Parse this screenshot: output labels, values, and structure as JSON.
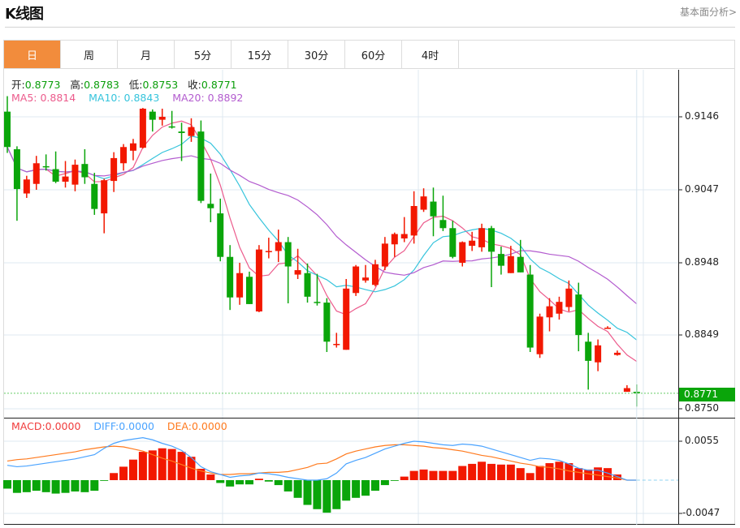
{
  "header": {
    "title": "K线图",
    "link": "基本面分析>"
  },
  "tabs": [
    {
      "label": "日",
      "active": true
    },
    {
      "label": "周"
    },
    {
      "label": "月"
    },
    {
      "label": "5分"
    },
    {
      "label": "15分"
    },
    {
      "label": "30分"
    },
    {
      "label": "60分"
    },
    {
      "label": "4时"
    }
  ],
  "ohlc_legend": {
    "open_label": "开:",
    "open": "0.8773",
    "high_label": "高:",
    "high": "0.8783",
    "low_label": "低:",
    "low": "0.8753",
    "close_label": "收:",
    "close": "0.8771"
  },
  "ma_legend": {
    "ma5": "MA5: 0.8814",
    "ma10": "MA10: 0.8843",
    "ma20": "MA20: 0.8892"
  },
  "macd_legend": {
    "macd": "MACD:0.0000",
    "diff": "DIFF:0.0000",
    "dea": "DEA:0.0000"
  },
  "price_axis": [
    "0.9146",
    "0.9047",
    "0.8948",
    "0.8849",
    "0.8750"
  ],
  "current_price": "0.8771",
  "macd_axis": [
    "0.0055",
    "-0.0047"
  ],
  "colors": {
    "up": "#f21800",
    "down": "#0aa50a",
    "ma5": "#ec5b8c",
    "ma10": "#36c4dc",
    "ma20": "#b35ccf",
    "diff": "#4aa3ff",
    "dea": "#ff7a1e",
    "active_tab": "#f28c3c"
  },
  "chart_data": {
    "type": "candlestick",
    "price_range": [
      0.875,
      0.9146
    ],
    "ohlc": [
      [
        0.9153,
        0.9174,
        0.9097,
        0.9105
      ],
      [
        0.9102,
        0.9106,
        0.9005,
        0.9048
      ],
      [
        0.9042,
        0.9066,
        0.9036,
        0.9061
      ],
      [
        0.9055,
        0.9093,
        0.9047,
        0.9083
      ],
      [
        0.9079,
        0.9095,
        0.9073,
        0.9078
      ],
      [
        0.9075,
        0.9099,
        0.9056,
        0.9058
      ],
      [
        0.9058,
        0.9086,
        0.905,
        0.9065
      ],
      [
        0.9054,
        0.9088,
        0.9045,
        0.9081
      ],
      [
        0.9082,
        0.9102,
        0.9055,
        0.9064
      ],
      [
        0.9055,
        0.907,
        0.9013,
        0.9021
      ],
      [
        0.9015,
        0.9062,
        0.8988,
        0.906
      ],
      [
        0.9059,
        0.9098,
        0.9044,
        0.909
      ],
      [
        0.9083,
        0.9109,
        0.9073,
        0.9105
      ],
      [
        0.91,
        0.9116,
        0.9087,
        0.911
      ],
      [
        0.9104,
        0.9158,
        0.9103,
        0.9157
      ],
      [
        0.9153,
        0.9156,
        0.9126,
        0.9142
      ],
      [
        0.9142,
        0.9157,
        0.9134,
        0.9146
      ],
      [
        0.9133,
        0.9154,
        0.913,
        0.9132
      ],
      [
        0.9126,
        0.9138,
        0.9086,
        0.9124
      ],
      [
        0.912,
        0.9144,
        0.9112,
        0.9132
      ],
      [
        0.9126,
        0.9141,
        0.9029,
        0.9032
      ],
      [
        0.9028,
        0.9069,
        0.9003,
        0.9022
      ],
      [
        0.9015,
        0.9035,
        0.895,
        0.8956
      ],
      [
        0.8956,
        0.8972,
        0.8884,
        0.8901
      ],
      [
        0.8901,
        0.8948,
        0.8891,
        0.8934
      ],
      [
        0.8929,
        0.8936,
        0.8892,
        0.8892
      ],
      [
        0.8882,
        0.8972,
        0.8881,
        0.8966
      ],
      [
        0.8963,
        0.8982,
        0.8954,
        0.8964
      ],
      [
        0.8964,
        0.8993,
        0.8949,
        0.8976
      ],
      [
        0.8976,
        0.8983,
        0.8893,
        0.8943
      ],
      [
        0.8932,
        0.8967,
        0.8926,
        0.8938
      ],
      [
        0.8934,
        0.8947,
        0.8894,
        0.8902
      ],
      [
        0.8895,
        0.8933,
        0.889,
        0.8894
      ],
      [
        0.8894,
        0.89,
        0.8827,
        0.8841
      ],
      [
        0.8837,
        0.8853,
        0.8833,
        0.8838
      ],
      [
        0.883,
        0.8926,
        0.883,
        0.8913
      ],
      [
        0.8907,
        0.8945,
        0.8903,
        0.8943
      ],
      [
        0.8924,
        0.8945,
        0.8921,
        0.8928
      ],
      [
        0.8918,
        0.8952,
        0.8916,
        0.8946
      ],
      [
        0.8943,
        0.8983,
        0.8938,
        0.8974
      ],
      [
        0.8973,
        0.8989,
        0.8956,
        0.8987
      ],
      [
        0.8981,
        0.901,
        0.8976,
        0.8987
      ],
      [
        0.8985,
        0.9045,
        0.8974,
        0.9025
      ],
      [
        0.902,
        0.9049,
        0.9017,
        0.9038
      ],
      [
        0.9031,
        0.905,
        0.8984,
        0.9011
      ],
      [
        0.9006,
        0.9039,
        0.8991,
        0.8995
      ],
      [
        0.8995,
        0.9005,
        0.8954,
        0.8956
      ],
      [
        0.8948,
        0.8977,
        0.8943,
        0.8976
      ],
      [
        0.8971,
        0.899,
        0.8964,
        0.8978
      ],
      [
        0.8969,
        0.9001,
        0.8963,
        0.8995
      ],
      [
        0.8995,
        0.8998,
        0.8915,
        0.8963
      ],
      [
        0.896,
        0.897,
        0.8932,
        0.8944
      ],
      [
        0.8934,
        0.8971,
        0.8934,
        0.8957
      ],
      [
        0.8956,
        0.8979,
        0.8935,
        0.8935
      ],
      [
        0.8932,
        0.8945,
        0.8827,
        0.8833
      ],
      [
        0.8824,
        0.8879,
        0.8819,
        0.8875
      ],
      [
        0.8874,
        0.89,
        0.8855,
        0.8889
      ],
      [
        0.8879,
        0.8902,
        0.8871,
        0.8895
      ],
      [
        0.8888,
        0.8924,
        0.8882,
        0.8913
      ],
      [
        0.8905,
        0.8921,
        0.8828,
        0.885
      ],
      [
        0.8841,
        0.8853,
        0.8776,
        0.8815
      ],
      [
        0.8813,
        0.8844,
        0.8801,
        0.8836
      ],
      [
        0.8859,
        0.8862,
        0.8859,
        0.886
      ],
      [
        0.8823,
        0.8829,
        0.8822,
        0.8826
      ],
      [
        0.8773,
        0.8782,
        0.8773,
        0.8778
      ],
      [
        0.8773,
        0.8783,
        0.8753,
        0.8771
      ]
    ],
    "macd_range": [
      -0.0047,
      0.0055
    ],
    "macd_hist": [
      -0.0012,
      -0.0018,
      -0.0017,
      -0.0015,
      -0.0017,
      -0.0019,
      -0.0018,
      -0.0016,
      -0.0017,
      -0.0015,
      -0.0001,
      0.001,
      0.0019,
      0.0029,
      0.004,
      0.0042,
      0.0045,
      0.0044,
      0.004,
      0.0033,
      0.0016,
      0.0008,
      -0.0004,
      -0.0009,
      -0.0006,
      -0.0006,
      0.0002,
      -0.0002,
      -0.0007,
      -0.0016,
      -0.0025,
      -0.0035,
      -0.0041,
      -0.0046,
      -0.0041,
      -0.0029,
      -0.0025,
      -0.0022,
      -0.0015,
      -0.0007,
      -0.0001,
      0.0005,
      0.0013,
      0.0015,
      0.0013,
      0.0013,
      0.0013,
      0.002,
      0.0023,
      0.0026,
      0.0023,
      0.0022,
      0.0022,
      0.0017,
      0.001,
      0.002,
      0.0024,
      0.0026,
      0.0024,
      0.0017,
      0.0015,
      0.0018,
      0.0017,
      0.0008,
      0.0,
      0.0
    ],
    "diff": [
      0.0021,
      0.0019,
      0.002,
      0.0022,
      0.0024,
      0.0026,
      0.0028,
      0.003,
      0.0033,
      0.0036,
      0.0045,
      0.0052,
      0.0056,
      0.0058,
      0.006,
      0.0057,
      0.0052,
      0.0048,
      0.0042,
      0.0032,
      0.0019,
      0.0012,
      0.0008,
      0.0004,
      0.0006,
      0.0007,
      0.001,
      0.0009,
      0.0007,
      0.0004,
      0.0002,
      0.0,
      0.0,
      0.0002,
      0.001,
      0.0023,
      0.0028,
      0.0032,
      0.0038,
      0.0044,
      0.0048,
      0.0052,
      0.0055,
      0.0054,
      0.0052,
      0.005,
      0.0049,
      0.0051,
      0.005,
      0.0048,
      0.0044,
      0.004,
      0.0036,
      0.0032,
      0.0028,
      0.0031,
      0.003,
      0.0028,
      0.0023,
      0.0017,
      0.0014,
      0.0014,
      0.001,
      0.0005,
      0.0,
      0.0
    ],
    "dea": [
      0.0027,
      0.0029,
      0.003,
      0.0032,
      0.0034,
      0.0036,
      0.0038,
      0.004,
      0.0043,
      0.0045,
      0.0047,
      0.0048,
      0.0047,
      0.0044,
      0.0041,
      0.0036,
      0.0031,
      0.0027,
      0.0022,
      0.0017,
      0.0013,
      0.001,
      0.0008,
      0.0008,
      0.0009,
      0.0009,
      0.001,
      0.0011,
      0.0011,
      0.0012,
      0.0015,
      0.0018,
      0.0023,
      0.0024,
      0.003,
      0.0037,
      0.0041,
      0.0044,
      0.0047,
      0.0049,
      0.005,
      0.005,
      0.0049,
      0.0048,
      0.0046,
      0.0045,
      0.0043,
      0.0041,
      0.0038,
      0.0035,
      0.0033,
      0.003,
      0.0027,
      0.0024,
      0.0022,
      0.0019,
      0.0018,
      0.0016,
      0.0013,
      0.0011,
      0.0009,
      0.0007,
      0.0005,
      0.0003,
      0.0,
      0.0
    ]
  }
}
